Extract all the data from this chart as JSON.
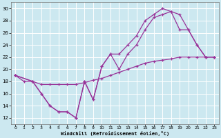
{
  "xlabel": "Windchill (Refroidissement éolien,°C)",
  "background_color": "#cce8f0",
  "line_color": "#993399",
  "grid_color": "#ffffff",
  "xlim": [
    -0.5,
    23.5
  ],
  "ylim": [
    11,
    31
  ],
  "xticks": [
    0,
    1,
    2,
    3,
    4,
    5,
    6,
    7,
    8,
    9,
    10,
    11,
    12,
    13,
    14,
    15,
    16,
    17,
    18,
    19,
    20,
    21,
    22,
    23
  ],
  "yticks": [
    12,
    14,
    16,
    18,
    20,
    22,
    24,
    26,
    28,
    30
  ],
  "line1_x": [
    0,
    1,
    2,
    3,
    4,
    5,
    6,
    7,
    8,
    9,
    10,
    11,
    12,
    13,
    14,
    15,
    16,
    17,
    18,
    19,
    20,
    21,
    22,
    23
  ],
  "line1_y": [
    19.0,
    18.0,
    18.0,
    17.5,
    17.5,
    17.5,
    17.5,
    17.5,
    17.8,
    18.2,
    18.5,
    19.0,
    19.5,
    20.0,
    20.5,
    21.0,
    21.3,
    21.5,
    21.7,
    22.0,
    22.0,
    22.0,
    22.0,
    22.0
  ],
  "line2_x": [
    0,
    2,
    3,
    4,
    5,
    6,
    7,
    8,
    9,
    10,
    11,
    12,
    13,
    14,
    15,
    16,
    17,
    18,
    19,
    20,
    21,
    22,
    23
  ],
  "line2_y": [
    19,
    18,
    16,
    14,
    13,
    13,
    12,
    18,
    15,
    20.5,
    22.5,
    20,
    22.5,
    24,
    26.5,
    28.5,
    29.0,
    29.5,
    26.5,
    26.5,
    24,
    22,
    22
  ],
  "line3_x": [
    0,
    2,
    3,
    4,
    5,
    6,
    7,
    8,
    9,
    10,
    11,
    12,
    13,
    14,
    15,
    16,
    17,
    18,
    19,
    20,
    21,
    22,
    23
  ],
  "line3_y": [
    19,
    18,
    16,
    14,
    13,
    13,
    12,
    18,
    15,
    20.5,
    22.5,
    22.5,
    24,
    25.5,
    28.0,
    29.0,
    30.0,
    29.5,
    29.0,
    26.5,
    24,
    22,
    22
  ]
}
